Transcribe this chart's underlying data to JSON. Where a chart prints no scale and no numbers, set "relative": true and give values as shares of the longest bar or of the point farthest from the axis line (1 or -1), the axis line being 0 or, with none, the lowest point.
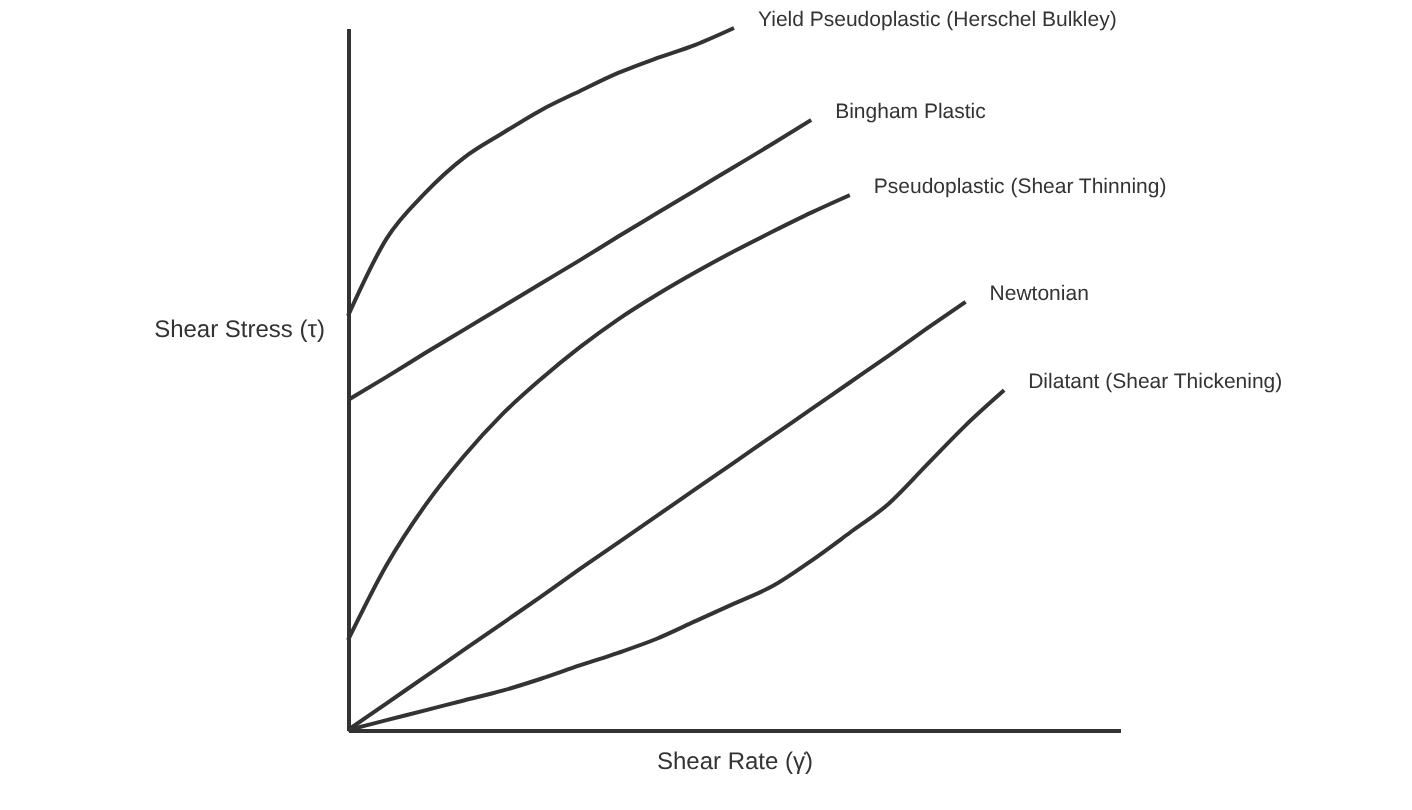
{
  "chart_data": {
    "type": "line",
    "relative": true,
    "xlabel": "Shear Rate (γ̇)",
    "ylabel": "Shear Stress (τ)",
    "tick_labels": false,
    "marker": "none",
    "line_style": "solid",
    "categories": [
      null,
      null,
      null,
      null,
      null,
      null,
      null,
      null,
      null,
      null,
      null,
      null,
      null,
      null,
      null,
      null,
      null,
      null,
      null,
      null,
      null
    ],
    "series": [
      {
        "name": "Yield Pseudoplastic (Herschel Bulkley)",
        "color": "#333333",
        "values": [
          0.59,
          0.7,
          0.765,
          0.815,
          0.85,
          0.883,
          0.91,
          0.936,
          0.957,
          0.976,
          1.0,
          null,
          null,
          null,
          null,
          null,
          null,
          null,
          null,
          null,
          null
        ]
      },
      {
        "name": "Bingham Plastic",
        "color": "#333333",
        "values": [
          0.47,
          0.503,
          0.537,
          0.57,
          0.603,
          0.636,
          0.669,
          0.703,
          0.736,
          0.769,
          0.802,
          0.835,
          0.869,
          null,
          null,
          null,
          null,
          null,
          null,
          null,
          null
        ]
      },
      {
        "name": "Pseudoplastic (Shear Thinning)",
        "color": "#333333",
        "values": [
          0.128,
          0.235,
          0.32,
          0.39,
          0.45,
          0.5,
          0.545,
          0.585,
          0.62,
          0.652,
          0.682,
          0.71,
          0.737,
          0.762,
          null,
          null,
          null,
          null,
          null,
          null,
          null
        ]
      },
      {
        "name": "Newtonian",
        "color": "#333333",
        "values": [
          0,
          0.038,
          0.076,
          0.114,
          0.152,
          0.19,
          0.229,
          0.267,
          0.305,
          0.343,
          0.381,
          0.419,
          0.457,
          0.495,
          0.533,
          0.572,
          0.61,
          null,
          null,
          null,
          null
        ]
      },
      {
        "name": "Dilatant (Shear Thickening)",
        "color": "#333333",
        "values": [
          0,
          0.014,
          0.028,
          0.042,
          0.056,
          0.073,
          0.092,
          0.11,
          0.13,
          0.155,
          0.18,
          0.205,
          0.241,
          0.281,
          0.322,
          0.378,
          0.434,
          0.484,
          null,
          null,
          null
        ]
      }
    ]
  }
}
